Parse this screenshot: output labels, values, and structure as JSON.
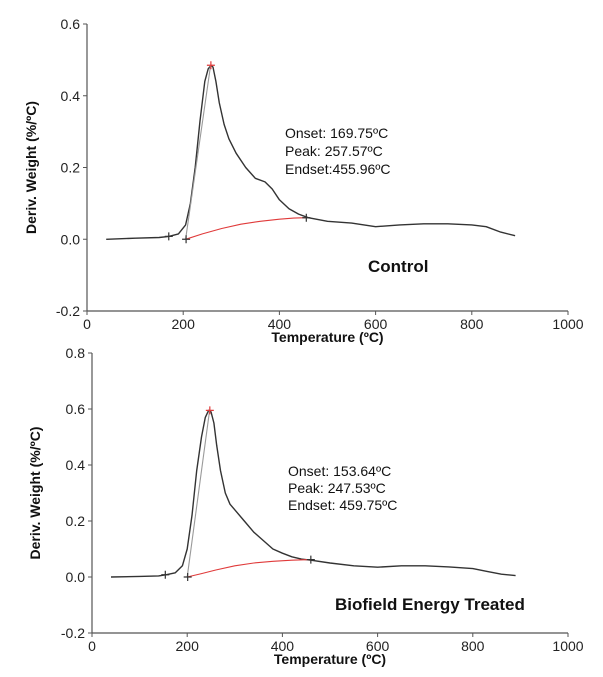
{
  "chart_data": [
    {
      "type": "line",
      "xlabel": "Temperature (ºC)",
      "ylabel": "Deriv. Weight (%/ºC)",
      "xlim": [
        0,
        1000
      ],
      "ylim": [
        -0.2,
        0.6
      ],
      "xticks": [
        0,
        200,
        400,
        600,
        800,
        1000
      ],
      "yticks": [
        -0.2,
        0.0,
        0.2,
        0.4,
        0.6
      ],
      "ytick_labels": [
        "-0.2",
        "0.0",
        "0.2",
        "0.4",
        "0.6"
      ],
      "grid": false,
      "sample_label": "Control",
      "annotations": [
        "Onset: 169.75ºC",
        "Peak:   257.57ºC",
        "Endset:455.96ºC"
      ],
      "series": [
        {
          "color": "#333333",
          "x": [
            40,
            100,
            150,
            170,
            190,
            205,
            215,
            225,
            235,
            245,
            252,
            258,
            262,
            268,
            275,
            285,
            295,
            310,
            330,
            350,
            370,
            385,
            400,
            420,
            440,
            460,
            500,
            550,
            600,
            650,
            700,
            750,
            800,
            830,
            860,
            890
          ],
          "y": [
            0.0,
            0.003,
            0.005,
            0.008,
            0.015,
            0.04,
            0.1,
            0.2,
            0.33,
            0.44,
            0.475,
            0.485,
            0.48,
            0.44,
            0.38,
            0.32,
            0.28,
            0.24,
            0.2,
            0.17,
            0.16,
            0.14,
            0.11,
            0.085,
            0.07,
            0.06,
            0.05,
            0.045,
            0.035,
            0.04,
            0.043,
            0.043,
            0.04,
            0.035,
            0.02,
            0.01
          ]
        },
        {
          "color": "#e03a3a",
          "x": [
            205,
            240,
            280,
            320,
            360,
            400,
            430,
            456
          ],
          "y": [
            0.0,
            0.015,
            0.03,
            0.042,
            0.05,
            0.056,
            0.059,
            0.06
          ]
        },
        {
          "color": "#9a9a9a",
          "x": [
            205,
            257
          ],
          "y": [
            0.0,
            0.485
          ]
        }
      ],
      "markers": [
        {
          "x": 170,
          "y": 0.008,
          "color": "#333333"
        },
        {
          "x": 206,
          "y": 0.0,
          "color": "#333333"
        },
        {
          "x": 257.57,
          "y": 0.485,
          "color": "#e03a3a"
        },
        {
          "x": 455.96,
          "y": 0.06,
          "color": "#333333"
        }
      ]
    },
    {
      "type": "line",
      "xlabel": "Temperature (ºC)",
      "ylabel": "Deriv. Weight (%/ºC)",
      "xlim": [
        0,
        1000
      ],
      "ylim": [
        -0.2,
        0.8
      ],
      "xticks": [
        0,
        200,
        400,
        600,
        800,
        1000
      ],
      "yticks": [
        -0.2,
        0.0,
        0.2,
        0.4,
        0.6,
        0.8
      ],
      "ytick_labels": [
        "-0.2",
        "0.0",
        "0.2",
        "0.4",
        "0.6",
        "0.8"
      ],
      "grid": false,
      "sample_label": "Biofield Energy Treated",
      "annotations": [
        "Onset:  153.64ºC",
        "Peak:    247.53ºC",
        "Endset: 459.75ºC"
      ],
      "series": [
        {
          "color": "#333333",
          "x": [
            40,
            100,
            140,
            155,
            175,
            190,
            200,
            210,
            220,
            230,
            238,
            245,
            250,
            256,
            262,
            270,
            280,
            290,
            300,
            320,
            340,
            360,
            380,
            400,
            420,
            440,
            460,
            500,
            550,
            600,
            650,
            700,
            750,
            800,
            830,
            860,
            890
          ],
          "y": [
            0.0,
            0.002,
            0.004,
            0.008,
            0.015,
            0.04,
            0.1,
            0.22,
            0.38,
            0.5,
            0.57,
            0.595,
            0.59,
            0.55,
            0.47,
            0.38,
            0.3,
            0.26,
            0.24,
            0.2,
            0.16,
            0.13,
            0.1,
            0.085,
            0.072,
            0.064,
            0.06,
            0.05,
            0.04,
            0.035,
            0.04,
            0.04,
            0.036,
            0.03,
            0.02,
            0.01,
            0.005
          ]
        },
        {
          "color": "#e03a3a",
          "x": [
            200,
            230,
            260,
            300,
            340,
            380,
            420,
            460
          ],
          "y": [
            0.0,
            0.012,
            0.025,
            0.04,
            0.05,
            0.056,
            0.06,
            0.062
          ]
        },
        {
          "color": "#9a9a9a",
          "x": [
            200,
            247
          ],
          "y": [
            0.0,
            0.595
          ]
        }
      ],
      "markers": [
        {
          "x": 154,
          "y": 0.008,
          "color": "#333333"
        },
        {
          "x": 201,
          "y": 0.0,
          "color": "#333333"
        },
        {
          "x": 247.53,
          "y": 0.595,
          "color": "#e03a3a"
        },
        {
          "x": 459.75,
          "y": 0.062,
          "color": "#333333"
        }
      ]
    }
  ]
}
